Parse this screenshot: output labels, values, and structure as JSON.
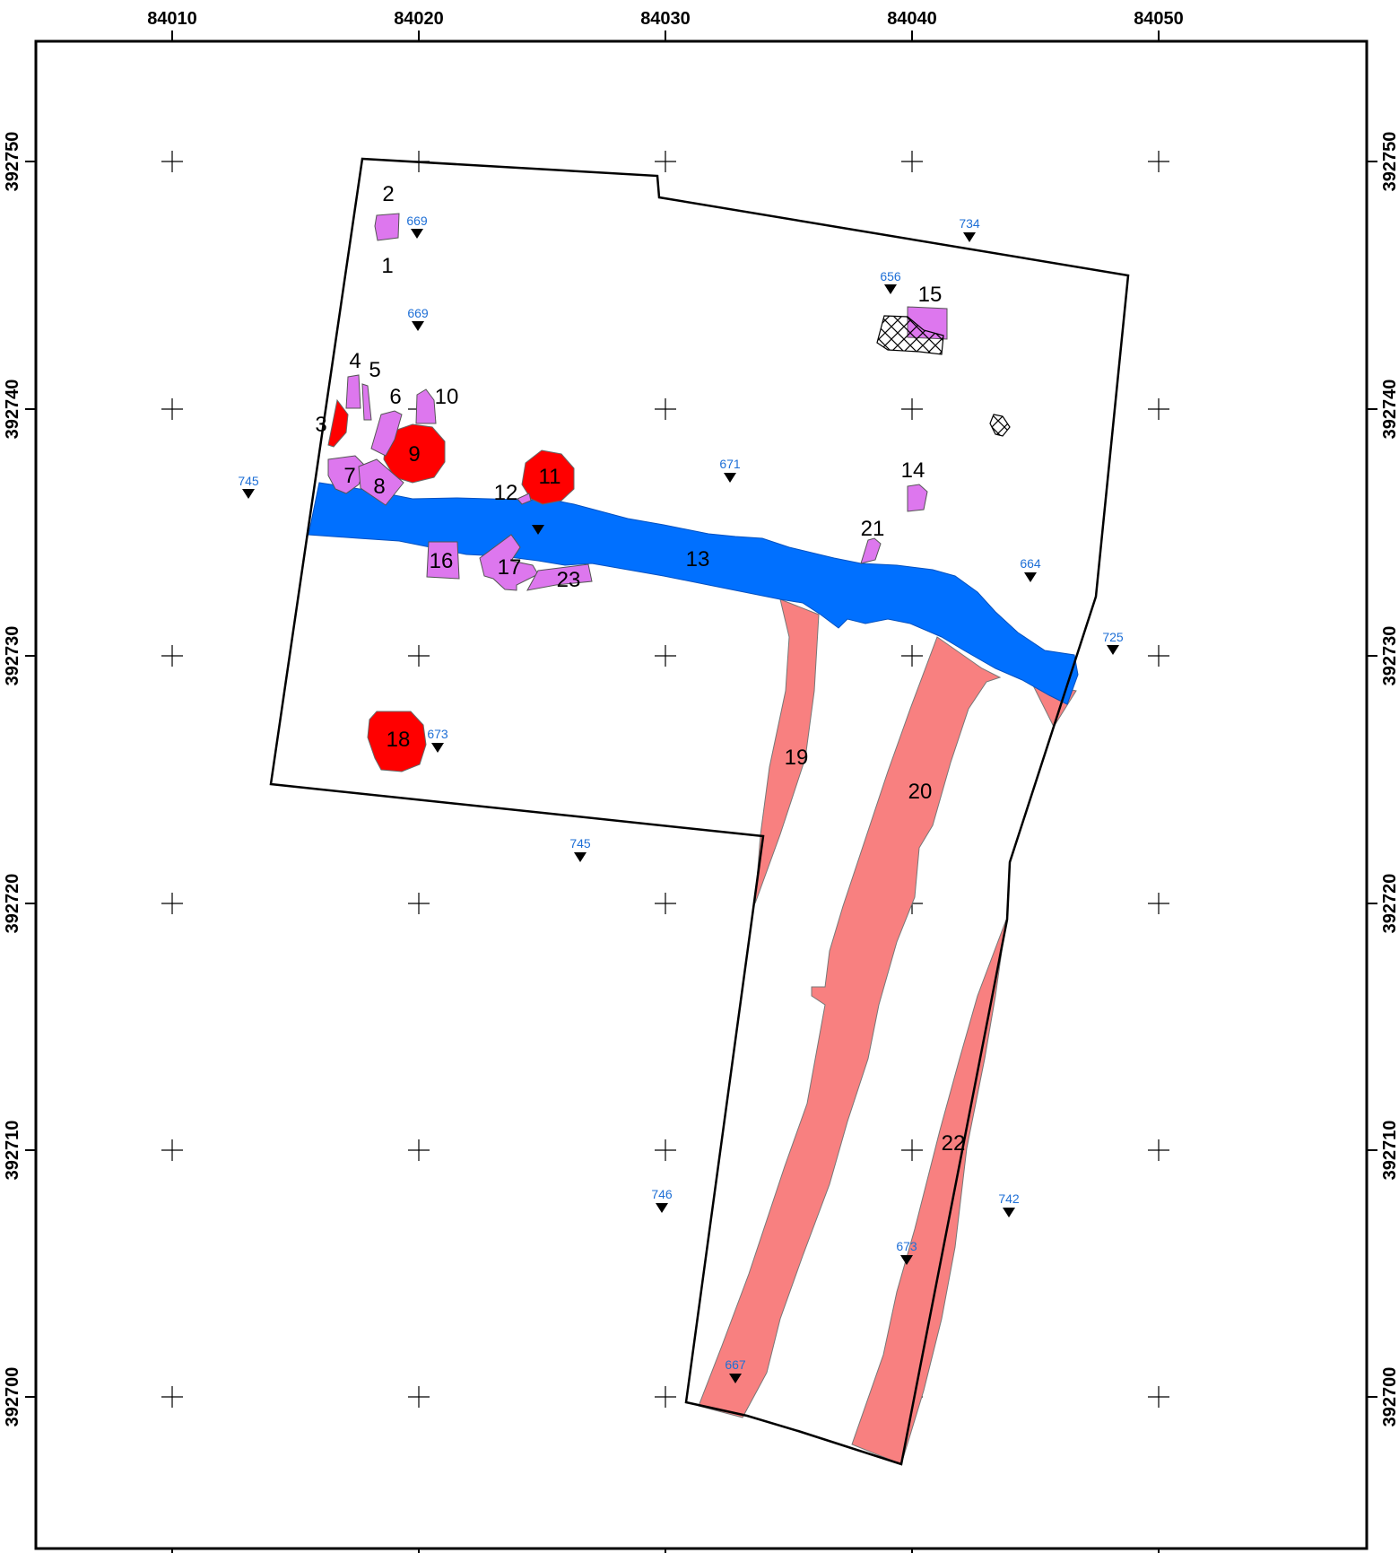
{
  "map": {
    "x_ticks": [
      "84010",
      "84020",
      "84030",
      "84040",
      "84050"
    ],
    "y_ticks": [
      "392750",
      "392740",
      "392730",
      "392720",
      "392710",
      "392700"
    ]
  },
  "colors": {
    "pit_red": "#ff0000",
    "feature_magenta": "#dd77ee",
    "ditch_blue": "#0070ff",
    "ditch_salmon": "#f88080",
    "outline": "#000000",
    "elevation_text": "#1e6fd6"
  },
  "features": {
    "f1": "1",
    "f2": "2",
    "f3": "3",
    "f4": "4",
    "f5": "5",
    "f6": "6",
    "f7": "7",
    "f8": "8",
    "f9": "9",
    "f10": "10",
    "f11": "11",
    "f12": "12",
    "f13": "13",
    "f14": "14",
    "f15": "15",
    "f16": "16",
    "f17": "17",
    "f18": "18",
    "f19": "19",
    "f20": "20",
    "f21": "21",
    "f22": "22",
    "f23": "23"
  },
  "elevations": {
    "e669a": "669",
    "e669b": "669",
    "e734": "734",
    "e656": "656",
    "e745a": "745",
    "e671": "671",
    "e664": "664",
    "e725": "725",
    "e673a": "673",
    "e745b": "745",
    "e746": "746",
    "e742": "742",
    "e673b": "673",
    "e667": "667"
  },
  "icons": {
    "elevation_marker": "triangle-down-icon",
    "grid_marker": "crosshair-plus-icon",
    "hatched_feature": "crosshatch-pattern"
  }
}
